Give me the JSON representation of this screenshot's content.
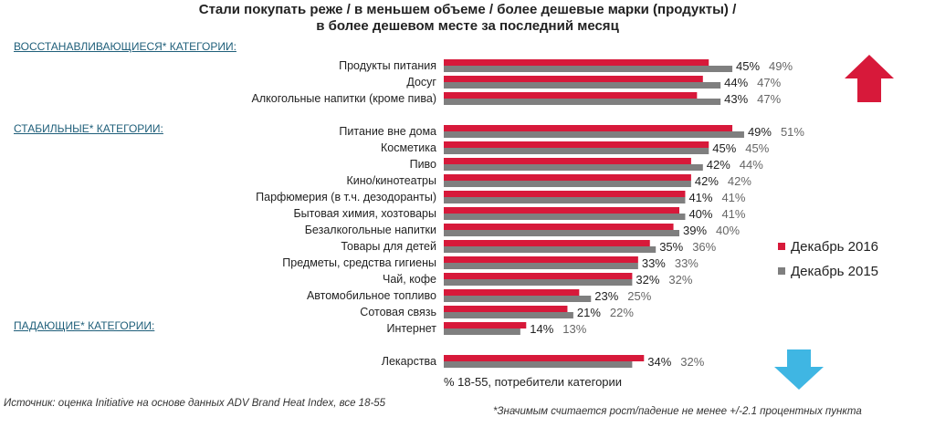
{
  "chart_data": {
    "type": "bar",
    "orientation": "horizontal",
    "title": "Стали покупать реже / в меньшем объеме / более дешевые марки (продукты) / в более дешевом месте за последний месяц",
    "title_lines": [
      "Стали покупать реже / в меньшем объеме / более дешевые марки (продукты) /",
      "в более дешевом месте за последний месяц"
    ],
    "xlabel": "% 18-55, потребители категории",
    "xlim": [
      0,
      55
    ],
    "grid": false,
    "legend_position": "right",
    "groups": [
      {
        "label": "ВОССТАНАВЛИВАЮЩИЕСЯ* КАТЕГОРИИ:",
        "arrow": "up",
        "categories": [
          "Продукты питания",
          "Досуг",
          "Алкогольные напитки (кроме пива)"
        ]
      },
      {
        "label": "СТАБИЛЬНЫЕ* КАТЕГОРИИ:",
        "arrow": "none",
        "categories": [
          "Питание вне дома",
          "Косметика",
          "Пиво",
          "Кино/кинотеатры",
          "Парфюмерия (в т.ч. дезодоранты)",
          "Бытовая химия, хозтовары",
          "Безалкогольные напитки",
          "Товары для детей",
          "Предметы, средства гигиены",
          "Чай, кофе",
          "Автомобильное топливо",
          "Сотовая связь",
          "Интернет"
        ]
      },
      {
        "label": "ПАДАЮЩИЕ* КАТЕГОРИИ:",
        "arrow": "down",
        "categories": [
          "Лекарства"
        ]
      }
    ],
    "categories": [
      "Продукты питания",
      "Досуг",
      "Алкогольные напитки (кроме пива)",
      "Питание вне дома",
      "Косметика",
      "Пиво",
      "Кино/кинотеатры",
      "Парфюмерия (в т.ч. дезодоранты)",
      "Бытовая химия, хозтовары",
      "Безалкогольные напитки",
      "Товары для детей",
      "Предметы, средства гигиены",
      "Чай, кофе",
      "Автомобильное топливо",
      "Сотовая связь",
      "Интернет",
      "Лекарства"
    ],
    "series": [
      {
        "name": "Декабрь 2016",
        "color": "#d7193a",
        "values": [
          45,
          44,
          43,
          49,
          45,
          42,
          42,
          41,
          40,
          39,
          35,
          33,
          32,
          23,
          21,
          14,
          34
        ]
      },
      {
        "name": "Декабрь 2015",
        "color": "#7f7f7f",
        "values": [
          49,
          47,
          47,
          51,
          45,
          44,
          42,
          41,
          41,
          40,
          36,
          33,
          32,
          25,
          22,
          13,
          32
        ]
      }
    ],
    "value_suffix": "%"
  },
  "colors": {
    "up_arrow": "#d7193a",
    "down_arrow": "#3fb6e3",
    "section": "#1f5f7a"
  },
  "source": "Источник: оценка Initiative на основе данных ADV Brand Heat Index, все 18-55",
  "footnote": "*Значимым считается рост/падение не менее +/-2.1 процентных пункта"
}
